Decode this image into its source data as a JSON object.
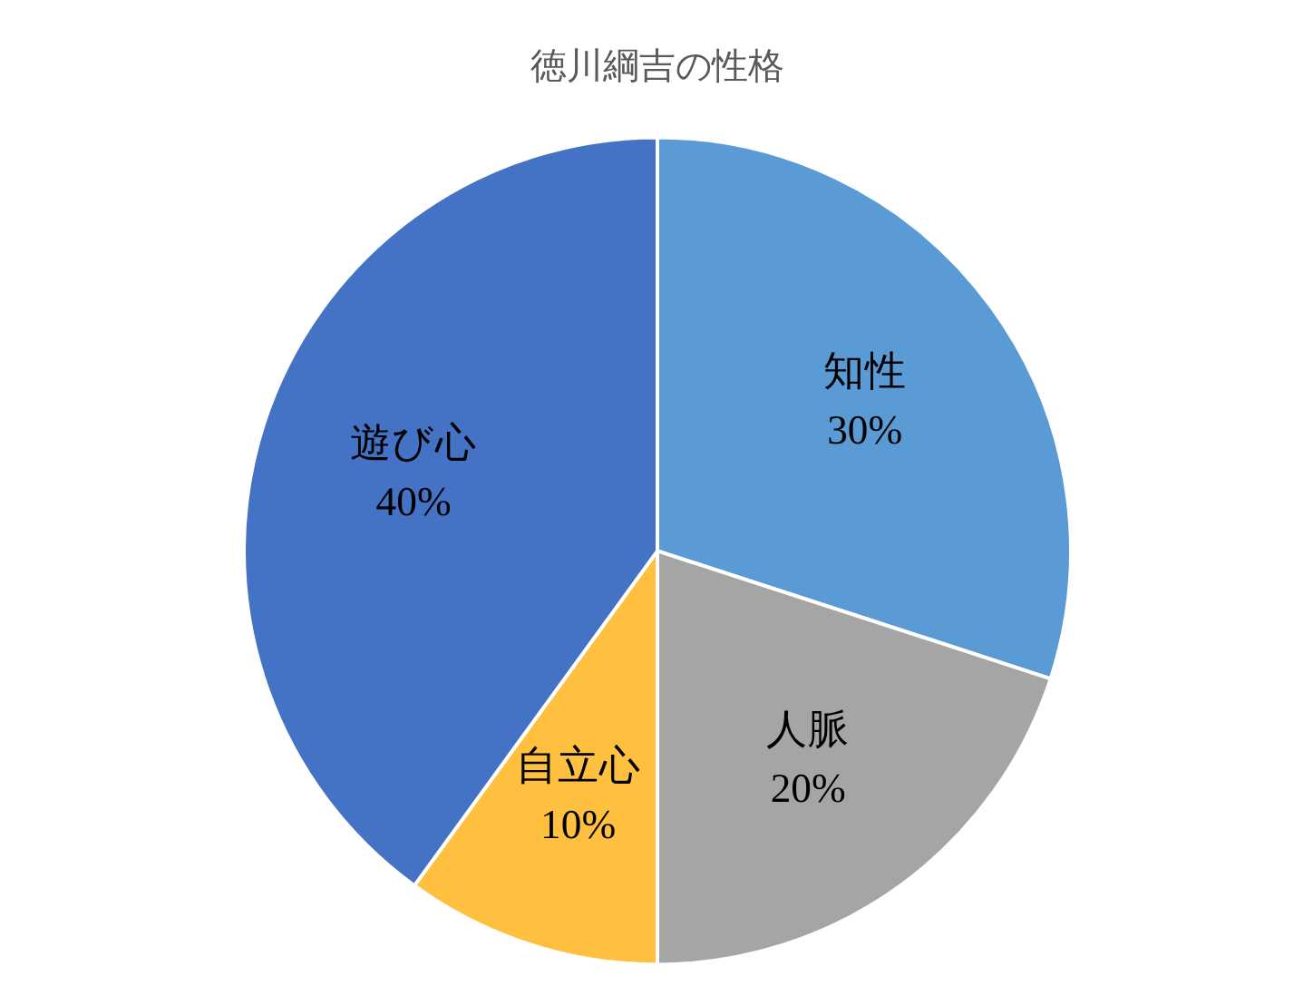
{
  "chart_data": {
    "type": "pie",
    "title": "徳川綱吉の性格",
    "categories": [
      "知性",
      "人脈",
      "自立心",
      "遊び心"
    ],
    "values": [
      30,
      20,
      10,
      40
    ],
    "colors": [
      "#5b9bd5",
      "#a5a5a5",
      "#ffc03f",
      "#4472c4"
    ],
    "value_labels": [
      "30%",
      "20%",
      "10%",
      "40%"
    ]
  }
}
